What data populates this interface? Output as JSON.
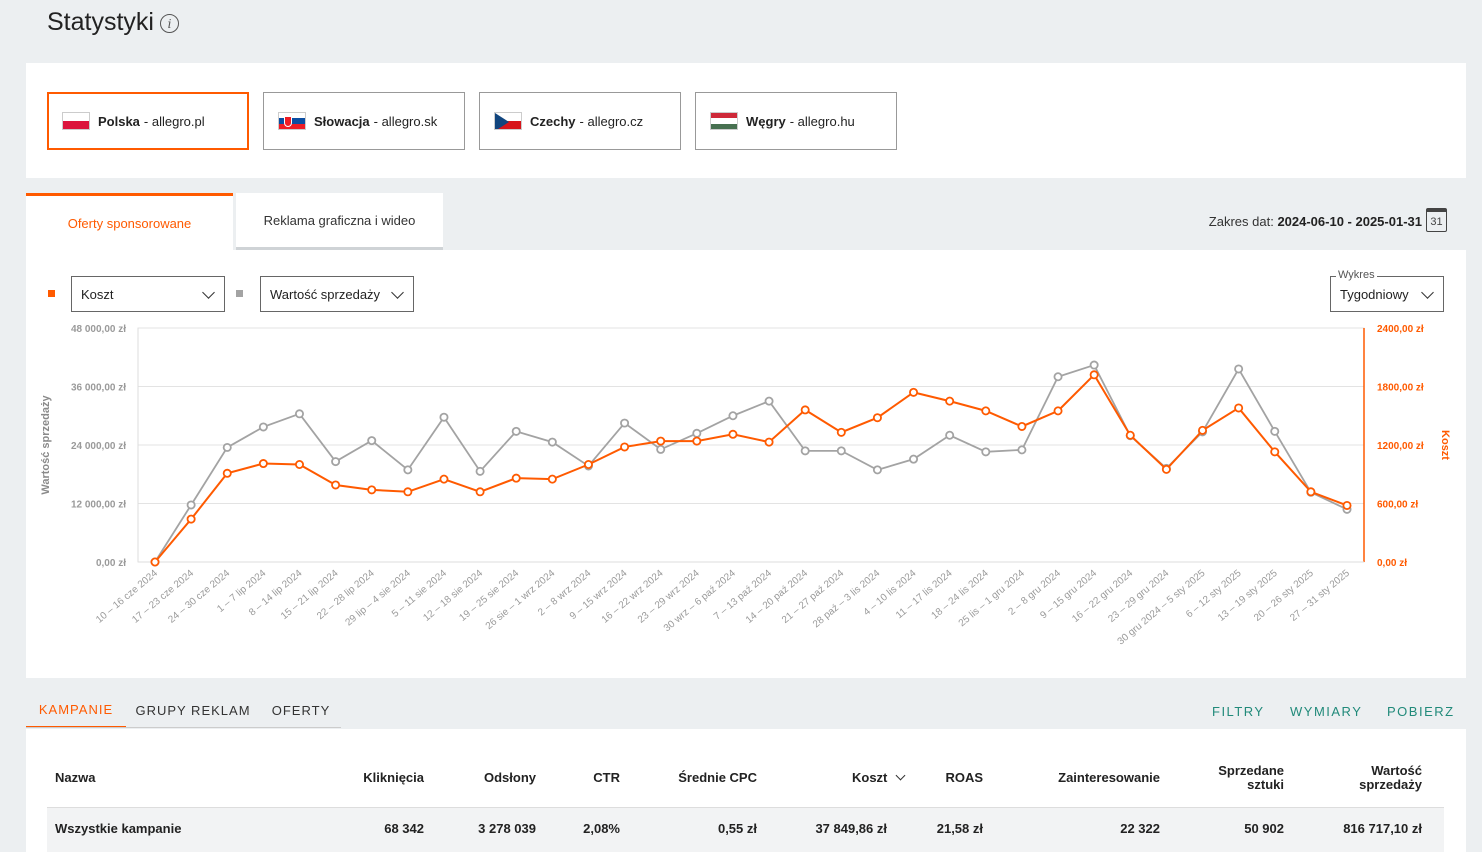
{
  "page": {
    "title": "Statystyki"
  },
  "markets": [
    {
      "country": "Polska",
      "domain": " - allegro.pl",
      "active": true
    },
    {
      "country": "Słowacja",
      "domain": " - allegro.sk",
      "active": false
    },
    {
      "country": "Czechy",
      "domain": " - allegro.cz",
      "active": false
    },
    {
      "country": "Węgry",
      "domain": " - allegro.hu",
      "active": false
    }
  ],
  "tabs": {
    "sponsored": "Oferty sponsorowane",
    "display": "Reklama graficzna i wideo"
  },
  "date_range": {
    "label": "Zakres dat: ",
    "value": "2024-06-10 - 2025-01-31",
    "calendar_day": "31"
  },
  "controls": {
    "metric_left": "Koszt",
    "metric_right": "Wartość sprzedaży",
    "chart_label": "Wykres",
    "chart_mode": "Tygodniowy"
  },
  "colors": {
    "accent": "#ff5a00",
    "grey_series": "#a3a3a3",
    "link": "#218a7a"
  },
  "chart_data": {
    "type": "line",
    "left_axis": {
      "label": "Wartość sprzedaży",
      "ticks": [
        "0,00 zł",
        "12 000,00 zł",
        "24 000,00 zł",
        "36 000,00 zł",
        "48 000,00 zł"
      ],
      "range": [
        0,
        48000
      ]
    },
    "right_axis": {
      "label": "Koszt",
      "ticks": [
        "0,00 zł",
        "600,00 zł",
        "1200,00 zł",
        "1800,00 zł",
        "2400,00 zł"
      ],
      "range": [
        0,
        2400
      ]
    },
    "categories": [
      "10 – 16 cze 2024",
      "17 – 23 cze 2024",
      "24 – 30 cze 2024",
      "1 – 7 lip 2024",
      "8 – 14 lip 2024",
      "15 – 21 lip 2024",
      "22 – 28 lip 2024",
      "29 lip – 4 sie 2024",
      "5 – 11 sie 2024",
      "12 – 18 sie 2024",
      "19 – 25 sie 2024",
      "26 sie – 1 wrz 2024",
      "2 – 8 wrz 2024",
      "9 – 15 wrz 2024",
      "16 – 22 wrz 2024",
      "23 – 29 wrz 2024",
      "30 wrz – 6 paź 2024",
      "7 – 13 paź 2024",
      "14 – 20 paź 2024",
      "21 – 27 paź 2024",
      "28 paź – 3 lis 2024",
      "4 – 10 lis 2024",
      "11 – 17 lis 2024",
      "18 – 24 lis 2024",
      "25 lis – 1 gru 2024",
      "2 – 8 gru 2024",
      "9 – 15 gru 2024",
      "16 – 22 gru 2024",
      "23 – 29 gru 2024",
      "30 gru 2024 – 5 sty 2025",
      "6 – 12 sty 2025",
      "13 – 19 sty 2025",
      "20 – 26 sty 2025",
      "27 – 31 sty 2025"
    ],
    "series": [
      {
        "name": "Wartość sprzedaży",
        "axis": "left",
        "color": "#a3a3a3",
        "values": [
          0,
          11700,
          23500,
          27700,
          30400,
          20600,
          24900,
          18900,
          29700,
          18600,
          26800,
          24600,
          19700,
          28500,
          23100,
          26400,
          30000,
          33000,
          22800,
          22800,
          18900,
          21100,
          26000,
          22600,
          23000,
          38000,
          40400,
          25900,
          19200,
          26700,
          39600,
          26800,
          14300,
          10800
        ]
      },
      {
        "name": "Koszt",
        "axis": "right",
        "color": "#ff5a00",
        "values": [
          0,
          440,
          910,
          1010,
          1000,
          790,
          740,
          720,
          850,
          720,
          860,
          850,
          1000,
          1180,
          1240,
          1240,
          1310,
          1230,
          1560,
          1330,
          1480,
          1740,
          1650,
          1550,
          1390,
          1550,
          1920,
          1300,
          950,
          1350,
          1580,
          1130,
          720,
          580
        ]
      }
    ],
    "grid": true
  },
  "bottom_tabs": {
    "campaigns": "KAMPANIE",
    "ad_groups": "GRUPY REKLAM",
    "offers": "OFERTY"
  },
  "actions": {
    "filters": "FILTRY",
    "dimensions": "WYMIARY",
    "download": "POBIERZ"
  },
  "table": {
    "headers": {
      "name": "Nazwa",
      "clicks": "Kliknięcia",
      "impressions": "Odsłony",
      "ctr": "CTR",
      "cpc": "Średnie CPC",
      "cost": "Koszt",
      "roas": "ROAS",
      "interest": "Zainteresowanie",
      "units_1": "Sprzedane",
      "units_2": "sztuki",
      "value_1": "Wartość",
      "value_2": "sprzedaży"
    },
    "total_row": {
      "name": "Wszystkie kampanie",
      "clicks": "68 342",
      "impressions": "3 278 039",
      "ctr": "2,08%",
      "cpc": "0,55 zł",
      "cost": "37 849,86 zł",
      "roas": "21,58 zł",
      "interest": "22 322",
      "units": "50 902",
      "value": "816 717,10 zł"
    }
  }
}
